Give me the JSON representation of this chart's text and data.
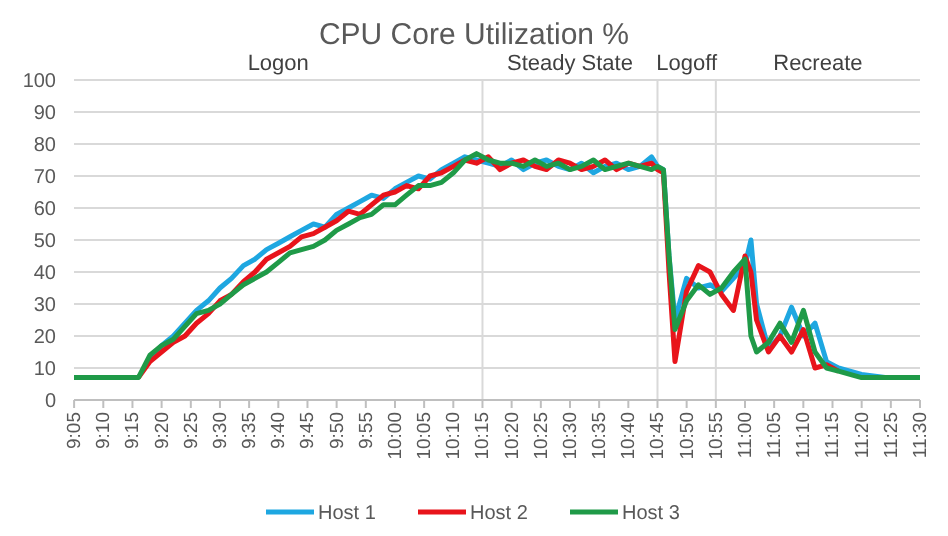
{
  "chart_data": {
    "type": "line",
    "title": "CPU Core Utilization %",
    "x": [
      9.083,
      9.15,
      9.217,
      9.267,
      9.3,
      9.333,
      9.367,
      9.4,
      9.433,
      9.467,
      9.5,
      9.533,
      9.567,
      9.6,
      9.633,
      9.667,
      9.7,
      9.733,
      9.767,
      9.8,
      9.833,
      9.867,
      9.9,
      9.933,
      9.967,
      10,
      10.033,
      10.067,
      10.1,
      10.133,
      10.167,
      10.2,
      10.233,
      10.267,
      10.3,
      10.333,
      10.367,
      10.4,
      10.433,
      10.467,
      10.5,
      10.533,
      10.567,
      10.6,
      10.633,
      10.667,
      10.7,
      10.733,
      10.75,
      10.767,
      10.783,
      10.8,
      10.833,
      10.867,
      10.9,
      10.933,
      10.967,
      11,
      11.017,
      11.033,
      11.067,
      11.1,
      11.133,
      11.167,
      11.2,
      11.233,
      11.267,
      11.333,
      11.4,
      11.5
    ],
    "series": [
      {
        "name": "Host 1",
        "color": "#1ea7e1",
        "values": [
          null,
          null,
          null,
          null,
          13,
          17,
          20,
          24,
          28,
          31,
          35,
          38,
          42,
          44,
          47,
          49,
          51,
          53,
          55,
          54,
          58,
          60,
          62,
          64,
          63,
          66,
          68,
          70,
          69,
          72,
          74,
          76,
          75,
          74,
          73,
          75,
          72,
          74,
          75,
          73,
          72,
          74,
          71,
          73,
          74,
          72,
          73,
          76,
          73,
          72,
          45,
          25,
          38,
          35,
          36,
          34,
          38,
          42,
          50,
          30,
          16,
          20,
          29,
          20,
          24,
          12,
          10,
          8,
          7,
          null
        ]
      },
      {
        "name": "Host 2",
        "color": "#e8141b",
        "values": [
          null,
          null,
          null,
          7,
          12,
          15,
          18,
          20,
          24,
          27,
          31,
          33,
          37,
          40,
          44,
          46,
          48,
          51,
          52,
          54,
          56,
          59,
          58,
          61,
          64,
          65,
          67,
          66,
          70,
          71,
          73,
          75,
          74,
          76,
          72,
          74,
          75,
          73,
          72,
          75,
          74,
          72,
          73,
          75,
          72,
          74,
          73,
          74,
          72,
          71,
          40,
          12,
          34,
          42,
          40,
          33,
          28,
          45,
          40,
          25,
          15,
          20,
          15,
          22,
          10,
          11,
          9,
          null,
          null,
          null
        ]
      },
      {
        "name": "Host 3",
        "color": "#1f9a48",
        "values": [
          7,
          7,
          7,
          7,
          14,
          17,
          19,
          23,
          27,
          28,
          30,
          33,
          36,
          38,
          40,
          43,
          46,
          47,
          48,
          50,
          53,
          55,
          57,
          58,
          61,
          61,
          64,
          67,
          67,
          68,
          71,
          75,
          77,
          75,
          74,
          74,
          73,
          75,
          73,
          74,
          72,
          73,
          75,
          72,
          73,
          74,
          73,
          72,
          73,
          72,
          45,
          22,
          31,
          36,
          33,
          35,
          40,
          44,
          20,
          15,
          18,
          24,
          18,
          28,
          15,
          10,
          9,
          7,
          7,
          7
        ]
      }
    ],
    "xlim": [
      9.083,
      11.5
    ],
    "xticks": [
      {
        "value": 9.0833,
        "label": "9:05"
      },
      {
        "value": 9.1667,
        "label": "9:10"
      },
      {
        "value": 9.25,
        "label": "9:15"
      },
      {
        "value": 9.3333,
        "label": "9:20"
      },
      {
        "value": 9.4167,
        "label": "9:25"
      },
      {
        "value": 9.5,
        "label": "9:30"
      },
      {
        "value": 9.5833,
        "label": "9:35"
      },
      {
        "value": 9.6667,
        "label": "9:40"
      },
      {
        "value": 9.75,
        "label": "9:45"
      },
      {
        "value": 9.8333,
        "label": "9:50"
      },
      {
        "value": 9.9167,
        "label": "9:55"
      },
      {
        "value": 10,
        "label": "10:00"
      },
      {
        "value": 10.0833,
        "label": "10:05"
      },
      {
        "value": 10.1667,
        "label": "10:10"
      },
      {
        "value": 10.25,
        "label": "10:15"
      },
      {
        "value": 10.3333,
        "label": "10:20"
      },
      {
        "value": 10.4167,
        "label": "10:25"
      },
      {
        "value": 10.5,
        "label": "10:30"
      },
      {
        "value": 10.5833,
        "label": "10:35"
      },
      {
        "value": 10.6667,
        "label": "10:40"
      },
      {
        "value": 10.75,
        "label": "10:45"
      },
      {
        "value": 10.8333,
        "label": "10:50"
      },
      {
        "value": 10.9167,
        "label": "10:55"
      },
      {
        "value": 11,
        "label": "11:00"
      },
      {
        "value": 11.0833,
        "label": "11:05"
      },
      {
        "value": 11.1667,
        "label": "11:10"
      },
      {
        "value": 11.25,
        "label": "11:15"
      },
      {
        "value": 11.3333,
        "label": "11:20"
      },
      {
        "value": 11.4167,
        "label": "11:25"
      },
      {
        "value": 11.5,
        "label": "11:30"
      }
    ],
    "ylim": [
      0,
      100
    ],
    "yticks": [
      0,
      10,
      20,
      30,
      40,
      50,
      60,
      70,
      80,
      90,
      100
    ],
    "grid": "y",
    "legend": "bottom",
    "marker": "none",
    "line_style": "solid",
    "ref_lines": [
      {
        "axis": "x",
        "value": 10.25,
        "color": "#d9d9d9"
      },
      {
        "axis": "x",
        "value": 10.75,
        "color": "#d9d9d9"
      },
      {
        "axis": "x",
        "value": 10.9167,
        "color": "#d9d9d9"
      }
    ],
    "annotations": [
      "Logon",
      "Steady State",
      "Logoff",
      "Recreate"
    ]
  }
}
